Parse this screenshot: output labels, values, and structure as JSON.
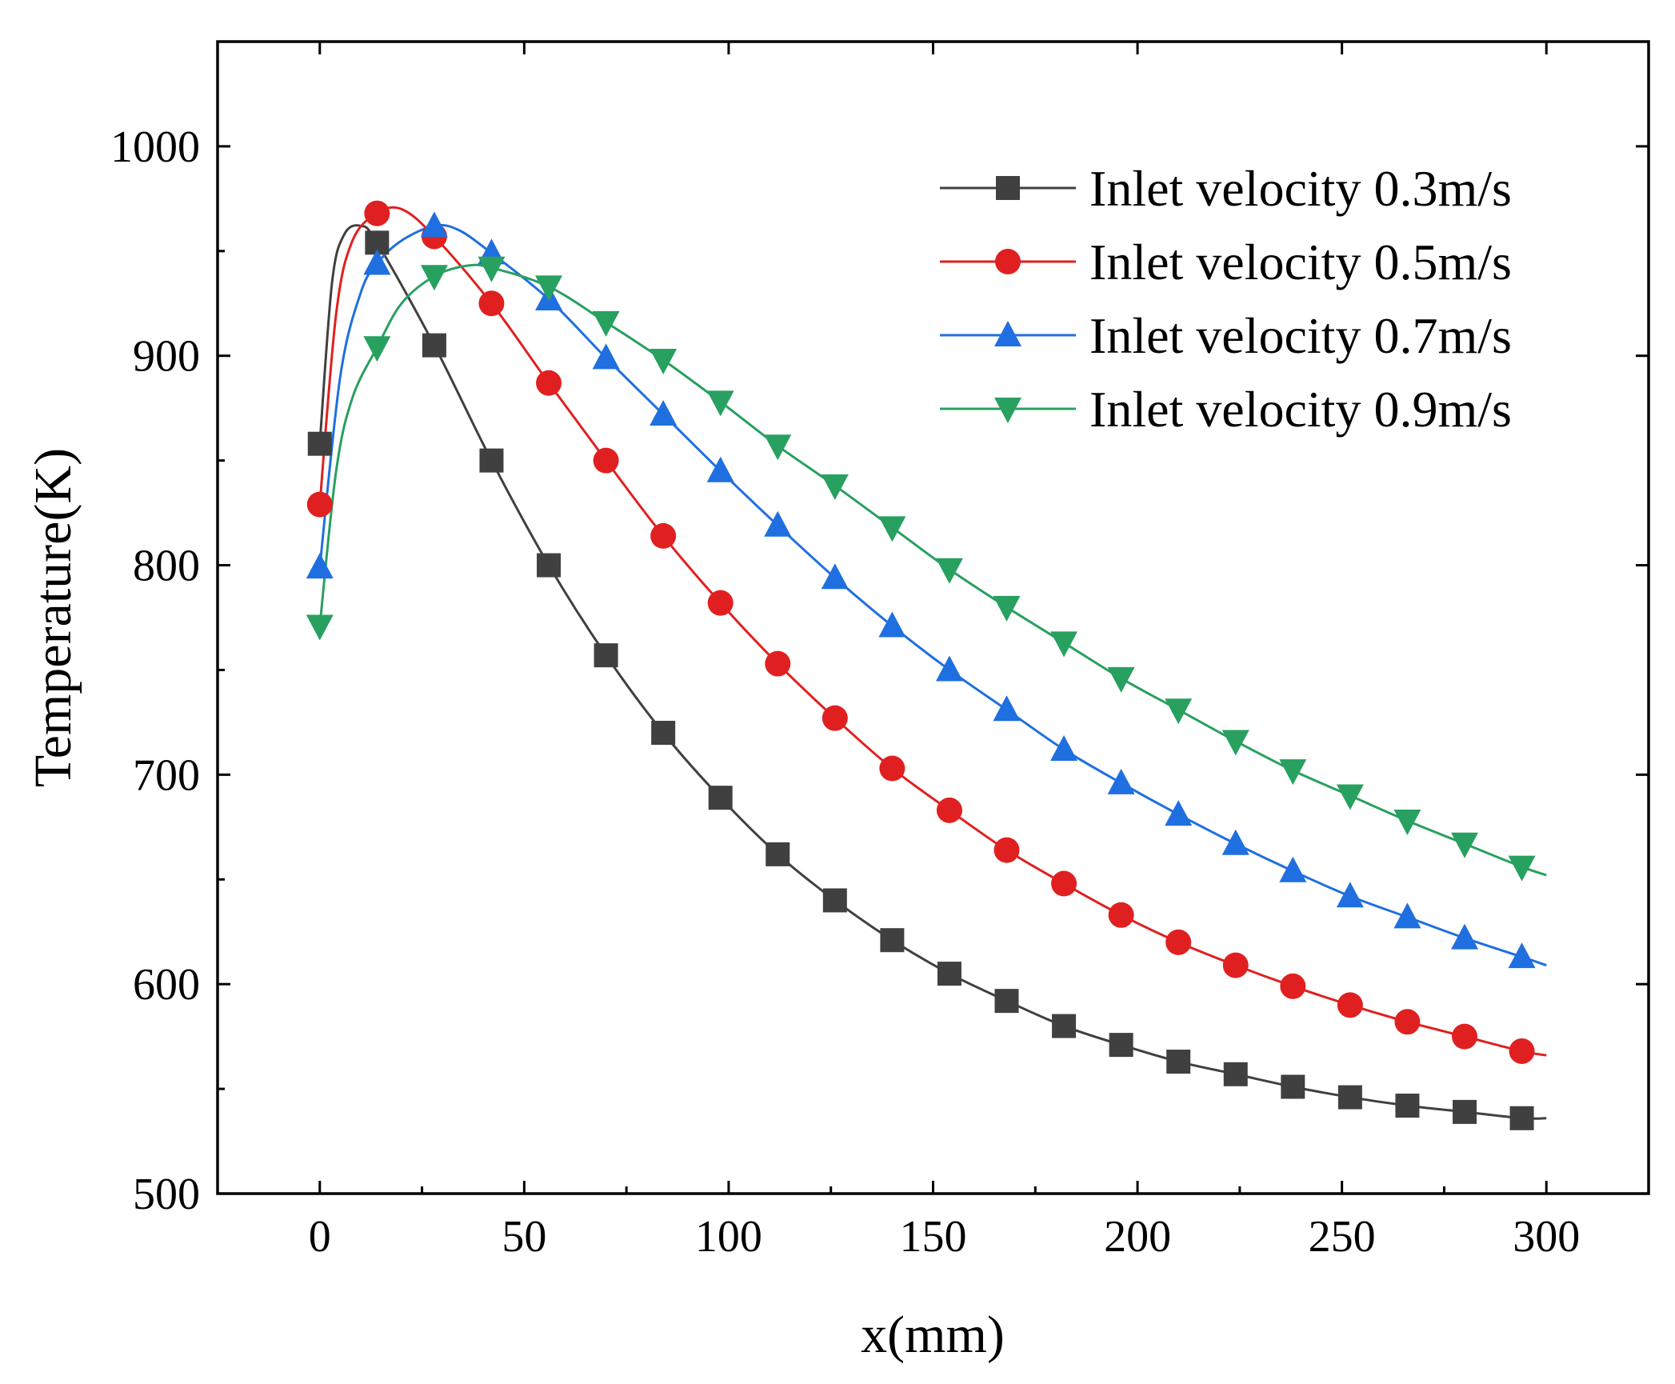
{
  "chart_data": {
    "type": "line",
    "title": "",
    "xlabel": "x(mm)",
    "ylabel": "Temperature(K)",
    "xlim": [
      -25,
      325
    ],
    "ylim": [
      500,
      1050
    ],
    "x_ticks": [
      0,
      50,
      100,
      150,
      200,
      250,
      300
    ],
    "y_ticks": [
      500,
      600,
      700,
      800,
      900,
      1000
    ],
    "legend_position": "top-right",
    "series": [
      {
        "name": "Inlet velocity 0.3m/s",
        "color": "#404040",
        "marker": "square",
        "x": [
          0,
          14,
          28,
          42,
          56,
          70,
          84,
          98,
          112,
          126,
          140,
          154,
          168,
          182,
          196,
          210,
          224,
          238,
          252,
          266,
          280,
          294
        ],
        "y": [
          858,
          954,
          905,
          850,
          800,
          757,
          720,
          689,
          662,
          640,
          621,
          605,
          592,
          580,
          571,
          563,
          557,
          551,
          546,
          542,
          539,
          536
        ],
        "curve_x": [
          0,
          3,
          6,
          10,
          14,
          28,
          42,
          56,
          70,
          84,
          98,
          112,
          126,
          140,
          154,
          168,
          182,
          196,
          210,
          224,
          238,
          252,
          266,
          280,
          294,
          300
        ],
        "curve_y": [
          858,
          935,
          958,
          962,
          954,
          905,
          850,
          800,
          757,
          720,
          689,
          662,
          640,
          621,
          605,
          592,
          580,
          571,
          563,
          557,
          551,
          546,
          542,
          539,
          536,
          536
        ]
      },
      {
        "name": "Inlet velocity 0.5m/s",
        "color": "#e02020",
        "marker": "circle",
        "x": [
          0,
          14,
          28,
          42,
          56,
          70,
          84,
          98,
          112,
          126,
          140,
          154,
          168,
          182,
          196,
          210,
          224,
          238,
          252,
          266,
          280,
          294
        ],
        "y": [
          829,
          968,
          957,
          925,
          887,
          850,
          814,
          782,
          753,
          727,
          703,
          683,
          664,
          648,
          633,
          620,
          609,
          599,
          590,
          582,
          575,
          568
        ],
        "curve_x": [
          0,
          4,
          8,
          14,
          20,
          28,
          42,
          56,
          70,
          84,
          98,
          112,
          126,
          140,
          154,
          168,
          182,
          196,
          210,
          224,
          238,
          252,
          266,
          280,
          294,
          300
        ],
        "curve_y": [
          829,
          920,
          955,
          968,
          970,
          957,
          925,
          887,
          850,
          814,
          782,
          753,
          727,
          703,
          683,
          664,
          648,
          633,
          620,
          609,
          599,
          590,
          582,
          575,
          568,
          566
        ]
      },
      {
        "name": "Inlet velocity 0.7m/s",
        "color": "#1f6fe0",
        "marker": "triangle-up",
        "x": [
          0,
          14,
          28,
          42,
          56,
          70,
          84,
          98,
          112,
          126,
          140,
          154,
          168,
          182,
          196,
          210,
          224,
          238,
          252,
          266,
          280,
          294
        ],
        "y": [
          799,
          944,
          962,
          949,
          927,
          899,
          872,
          845,
          819,
          794,
          771,
          750,
          731,
          712,
          696,
          681,
          667,
          654,
          642,
          632,
          622,
          613
        ],
        "curve_x": [
          0,
          5,
          10,
          14,
          20,
          28,
          34,
          42,
          56,
          70,
          84,
          98,
          112,
          126,
          140,
          154,
          168,
          182,
          196,
          210,
          224,
          238,
          252,
          266,
          280,
          294,
          300
        ],
        "curve_y": [
          799,
          890,
          930,
          944,
          955,
          962,
          960,
          949,
          927,
          899,
          872,
          845,
          819,
          794,
          771,
          750,
          731,
          712,
          696,
          681,
          667,
          654,
          642,
          632,
          622,
          613,
          609
        ]
      },
      {
        "name": "Inlet velocity 0.9m/s",
        "color": "#28a060",
        "marker": "triangle-down",
        "x": [
          0,
          14,
          28,
          42,
          56,
          70,
          84,
          98,
          112,
          126,
          140,
          154,
          168,
          182,
          196,
          210,
          224,
          238,
          252,
          266,
          280,
          294
        ],
        "y": [
          771,
          904,
          938,
          942,
          933,
          916,
          898,
          878,
          857,
          838,
          818,
          798,
          780,
          763,
          746,
          731,
          716,
          702,
          690,
          678,
          667,
          656
        ],
        "curve_x": [
          0,
          4,
          8,
          14,
          20,
          28,
          36,
          42,
          56,
          70,
          84,
          98,
          112,
          126,
          140,
          154,
          168,
          182,
          196,
          210,
          224,
          238,
          252,
          266,
          280,
          294,
          300
        ],
        "curve_y": [
          771,
          845,
          880,
          904,
          925,
          938,
          943,
          942,
          933,
          916,
          898,
          878,
          857,
          838,
          818,
          798,
          780,
          763,
          746,
          731,
          716,
          702,
          690,
          678,
          667,
          656,
          652
        ]
      }
    ]
  }
}
